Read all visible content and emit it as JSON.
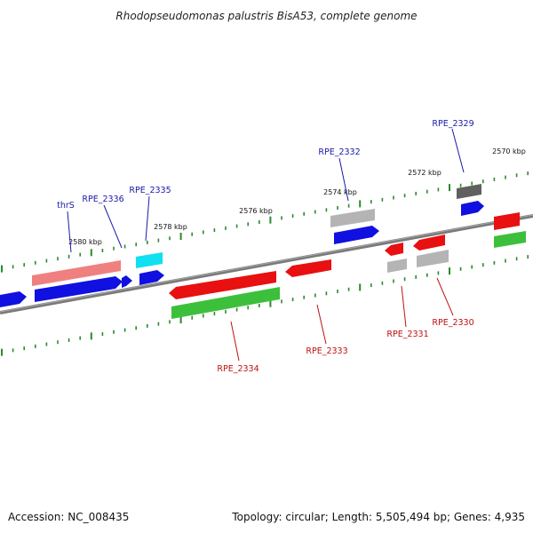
{
  "title": "Rhodopseudomonas palustris BisA53, complete genome",
  "footer": {
    "accession": "Accession: NC_008435",
    "summary": "Topology: circular; Length: 5,505,494 bp; Genes: 4,935"
  },
  "colors": {
    "background": "#ffffff",
    "backbone": "#7a7a7a",
    "tick": "#2a8a2a",
    "label_plus": "#1a1aa8",
    "label_minus": "#c01010",
    "blue": "#1010e0",
    "red": "#e81010",
    "green": "#3cc03c",
    "pink": "#f08080",
    "cyan": "#10e0f0",
    "light_gray": "#b4b4b4",
    "dark_gray": "#606060"
  },
  "scale": {
    "tick_labels": [
      "2570 kbp",
      "2572 kbp",
      "2574 kbp",
      "2576 kbp",
      "2578 kbp",
      "2580 kbp"
    ]
  },
  "labels": {
    "plus": [
      "thrS",
      "RPE_2336",
      "RPE_2335",
      "RPE_2332",
      "RPE_2329"
    ],
    "minus": [
      "RPE_2334",
      "RPE_2333",
      "RPE_2331",
      "RPE_2330"
    ]
  },
  "features": [
    {
      "track": "outer",
      "color": "cyan"
    },
    {
      "track": "outer",
      "color": "pink"
    },
    {
      "track": "outer",
      "color": "light_gray"
    },
    {
      "track": "outer",
      "color": "dark_gray"
    },
    {
      "track": "plus",
      "color": "blue",
      "strand": "+"
    },
    {
      "track": "plus",
      "color": "blue",
      "strand": "+"
    },
    {
      "track": "plus",
      "color": "blue",
      "strand": "+"
    },
    {
      "track": "plus",
      "color": "blue",
      "strand": "+"
    },
    {
      "track": "plus",
      "color": "blue",
      "strand": "+"
    },
    {
      "track": "plus",
      "color": "blue",
      "strand": "+"
    },
    {
      "track": "plus",
      "color": "red",
      "strand": "+"
    },
    {
      "track": "minus",
      "color": "red",
      "strand": "-"
    },
    {
      "track": "minus",
      "color": "red",
      "strand": "-"
    },
    {
      "track": "minus",
      "color": "red",
      "strand": "-"
    },
    {
      "track": "minus",
      "color": "red",
      "strand": "-"
    },
    {
      "track": "inner",
      "color": "green"
    },
    {
      "track": "inner",
      "color": "green"
    },
    {
      "track": "inner",
      "color": "light_gray"
    },
    {
      "track": "inner",
      "color": "light_gray"
    }
  ]
}
